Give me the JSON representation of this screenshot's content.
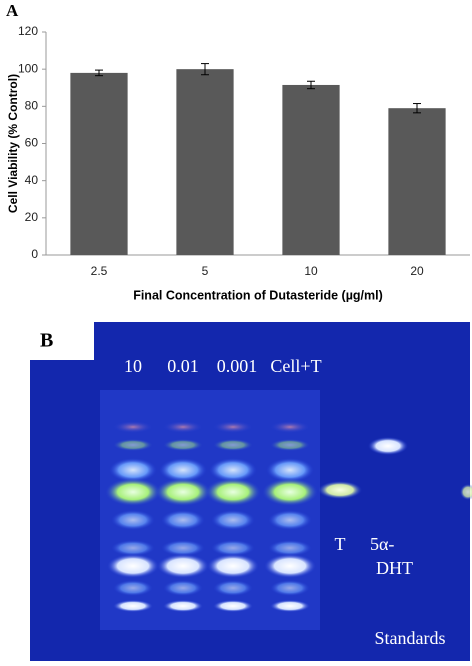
{
  "chart_data": {
    "type": "bar",
    "panel_label": "A",
    "categories": [
      "2.5",
      "5",
      "10",
      "20"
    ],
    "values": [
      98,
      100,
      91.5,
      79
    ],
    "errors": [
      1.5,
      3,
      2,
      2.5
    ],
    "color": "#595959",
    "ylim": [
      0,
      120
    ],
    "yticks": [
      0,
      20,
      40,
      60,
      80,
      100,
      120
    ],
    "grid": false,
    "y_label": "Cell Viability (% Control)",
    "x_label": "Final Concentration of Dutasteride (µg/ml)"
  },
  "panel_b": {
    "label": "B",
    "lanes": [
      "10",
      "0.01",
      "0.001",
      "Cell+T"
    ],
    "standard_t": "T",
    "standard_dht": [
      "5α-",
      "DHT"
    ],
    "standards": "Standards"
  }
}
